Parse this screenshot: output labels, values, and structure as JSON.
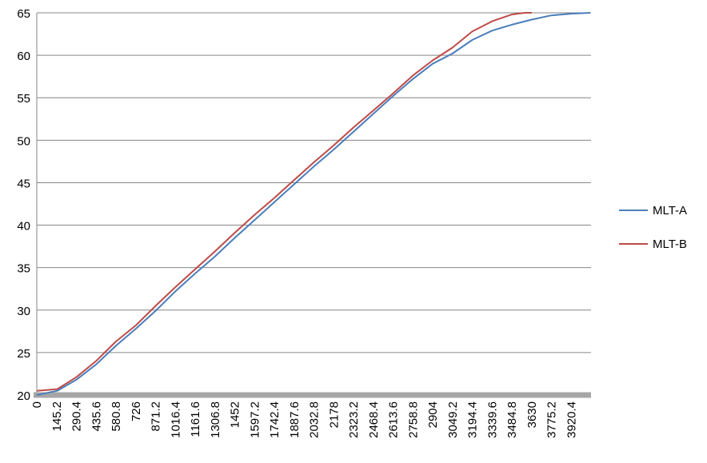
{
  "chart_data": {
    "type": "line",
    "title": "",
    "xlabel": "",
    "ylabel": "",
    "ylim": [
      20,
      65
    ],
    "y_ticks": [
      20,
      25,
      30,
      35,
      40,
      45,
      50,
      55,
      60,
      65
    ],
    "x_ticks": [
      "0",
      "145.2",
      "290.4",
      "435.6",
      "580.8",
      "726",
      "871.2",
      "1016.4",
      "1161.6",
      "1306.8",
      "1452",
      "1597.2",
      "1742.4",
      "1887.6",
      "2032.8",
      "2178",
      "2323.2",
      "2468.4",
      "2613.6",
      "2758.8",
      "2904",
      "3049.2",
      "3194.4",
      "3339.6",
      "3484.8",
      "3630",
      "3775.2",
      "3920.4"
    ],
    "xlim": [
      0,
      4065.6
    ],
    "grid": true,
    "legend_position": "right",
    "series": [
      {
        "name": "MLT-A",
        "color": "#4a7ebb",
        "x": [
          0,
          150,
          290,
          435,
          580,
          726,
          871,
          1016,
          1161,
          1306,
          1452,
          1597,
          1742,
          1887,
          2032,
          2178,
          2323,
          2468,
          2613,
          2758,
          2904,
          3049,
          3194,
          3340,
          3485,
          3630,
          3775,
          3920,
          4060
        ],
        "values": [
          20.0,
          20.5,
          21.8,
          23.6,
          25.8,
          27.8,
          29.9,
          32.2,
          34.3,
          36.3,
          38.5,
          40.6,
          42.7,
          44.8,
          46.9,
          48.9,
          51.0,
          53.1,
          55.2,
          57.2,
          59.0,
          60.2,
          61.8,
          62.9,
          63.6,
          64.2,
          64.7,
          64.9,
          65.0
        ]
      },
      {
        "name": "MLT-B",
        "color": "#be4b48",
        "x": [
          0,
          150,
          290,
          435,
          580,
          726,
          871,
          1016,
          1161,
          1306,
          1452,
          1597,
          1742,
          1887,
          2032,
          2178,
          2323,
          2468,
          2613,
          2758,
          2904,
          3049,
          3194,
          3340,
          3485,
          3580,
          3630
        ],
        "values": [
          20.5,
          20.7,
          22.1,
          24.0,
          26.3,
          28.2,
          30.5,
          32.7,
          34.8,
          36.9,
          39.1,
          41.2,
          43.2,
          45.3,
          47.4,
          49.4,
          51.5,
          53.5,
          55.5,
          57.6,
          59.4,
          60.9,
          62.8,
          64.0,
          64.8,
          65.0,
          65.0
        ]
      }
    ]
  }
}
